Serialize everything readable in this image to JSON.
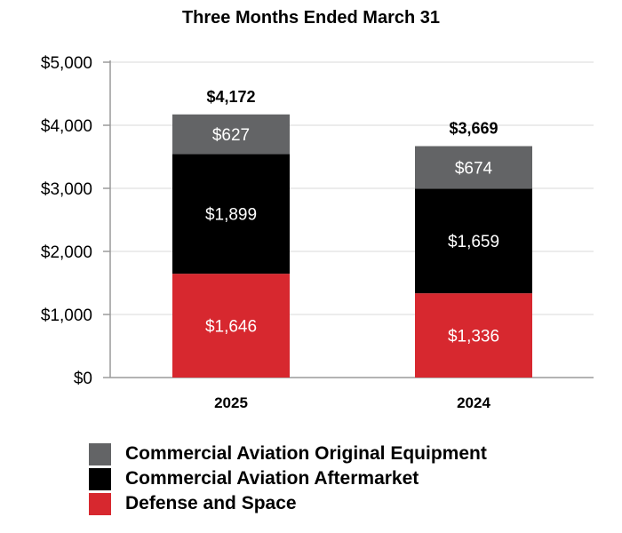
{
  "chart_data": {
    "type": "bar",
    "stacked": true,
    "title": "Three Months Ended March 31",
    "xlabel": "",
    "ylabel": "",
    "categories": [
      "2025",
      "2024"
    ],
    "ylim": [
      0,
      5000
    ],
    "yticks": [
      0,
      1000,
      2000,
      3000,
      4000,
      5000
    ],
    "ytick_labels": [
      "$0",
      "$1,000",
      "$2,000",
      "$3,000",
      "$4,000",
      "$5,000"
    ],
    "grid": true,
    "legend_position": "bottom",
    "series": [
      {
        "name": "Defense and Space",
        "values": [
          1646,
          1336
        ],
        "labels": [
          "$1,646",
          "$1,336"
        ],
        "color": "#d7282f"
      },
      {
        "name": "Commercial Aviation Aftermarket",
        "values": [
          1899,
          1659
        ],
        "labels": [
          "$1,899",
          "$1,659"
        ],
        "color": "#000000"
      },
      {
        "name": "Commercial Aviation Original Equipment",
        "values": [
          627,
          674
        ],
        "labels": [
          "$627",
          "$674"
        ],
        "color": "#636466"
      }
    ],
    "totals": [
      4172,
      3669
    ],
    "total_labels": [
      "$4,172",
      "$3,669"
    ]
  },
  "legend": {
    "items": [
      {
        "label": "Commercial Aviation Original Equipment",
        "color": "#636466"
      },
      {
        "label": "Commercial Aviation Aftermarket",
        "color": "#000000"
      },
      {
        "label": "Defense and Space",
        "color": "#d7282f"
      }
    ]
  }
}
